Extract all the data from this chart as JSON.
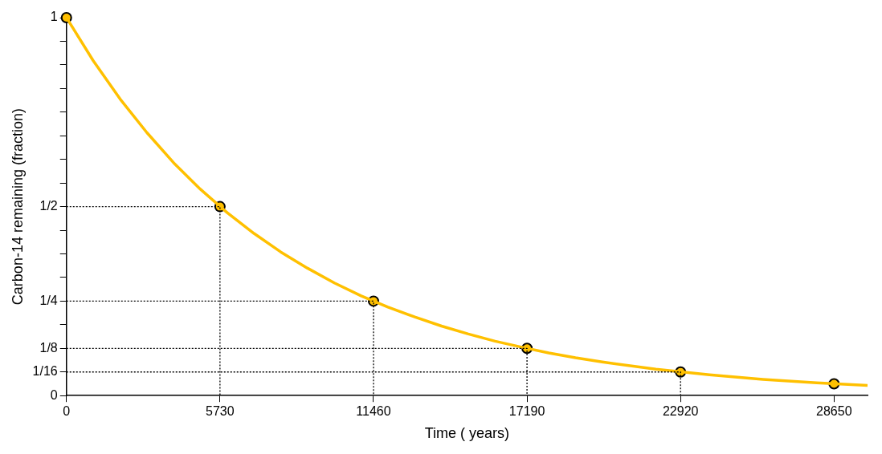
{
  "chart_data": {
    "type": "line",
    "xlabel": "Time ( years)",
    "ylabel": "Carbon-14 remaining (fraction)",
    "xlim": [
      0,
      29900
    ],
    "ylim": [
      0,
      1
    ],
    "xticks": [
      0,
      5730,
      11460,
      17190,
      22920,
      28650
    ],
    "yticks": [
      0,
      {
        "value": 0.0625,
        "label": "1/16"
      },
      {
        "value": 0.125,
        "label": "1/8"
      },
      {
        "value": 0.1875,
        "label": null
      },
      {
        "value": 0.25,
        "label": "1/4"
      },
      {
        "value": 0.3125,
        "label": null
      },
      {
        "value": 0.375,
        "label": null
      },
      {
        "value": 0.4375,
        "label": null
      },
      {
        "value": 0.5,
        "label": "1/2"
      },
      {
        "value": 0.5625,
        "label": null
      },
      {
        "value": 0.625,
        "label": null
      },
      {
        "value": 0.6875,
        "label": null
      },
      {
        "value": 0.75,
        "label": null
      },
      {
        "value": 0.8125,
        "label": null
      },
      {
        "value": 0.875,
        "label": null
      },
      {
        "value": 0.9375,
        "label": null
      },
      1
    ],
    "grid": false,
    "legend": false,
    "series": [
      {
        "type": "line",
        "color": "#000000",
        "line_style": "dotted",
        "marker": "none",
        "x": [
          0,
          5730,
          5730
        ],
        "values": [
          0.5,
          0.5,
          0
        ]
      },
      {
        "type": "line",
        "color": "#000000",
        "line_style": "dotted",
        "marker": "none",
        "x": [
          0,
          11460,
          11460
        ],
        "values": [
          0.25,
          0.25,
          0
        ]
      },
      {
        "type": "line",
        "color": "#000000",
        "line_style": "dotted",
        "marker": "none",
        "x": [
          0,
          17190,
          17190
        ],
        "values": [
          0.125,
          0.125,
          0
        ]
      },
      {
        "type": "line",
        "color": "#000000",
        "line_style": "dotted",
        "marker": "none",
        "x": [
          0,
          22920,
          22920
        ],
        "values": [
          0.0625,
          0.0625,
          0
        ]
      },
      {
        "color": "#ffc000",
        "line_style": "solid",
        "marker": "none",
        "x": [
          0,
          1000,
          2000,
          3000,
          4000,
          5000,
          6000,
          7000,
          8000,
          9000,
          10000,
          11000,
          12000,
          13000,
          14000,
          15000,
          16000,
          17000,
          18000,
          19000,
          20000,
          22000,
          24000,
          26000,
          28000,
          29900
        ],
        "values": [
          1,
          0.886,
          0.785,
          0.696,
          0.616,
          0.546,
          0.484,
          0.429,
          0.38,
          0.337,
          0.298,
          0.264,
          0.234,
          0.208,
          0.184,
          0.163,
          0.144,
          0.128,
          0.113,
          0.1,
          0.089,
          0.07,
          0.055,
          0.043,
          0.034,
          0.027
        ]
      },
      {
        "type": "scatter",
        "color": "#ffc000",
        "marker": "circle",
        "x": [
          0,
          5730,
          11460,
          17190,
          22920,
          28650
        ],
        "values": [
          1,
          0.5,
          0.25,
          0.125,
          0.0625,
          0.03125
        ]
      }
    ]
  }
}
